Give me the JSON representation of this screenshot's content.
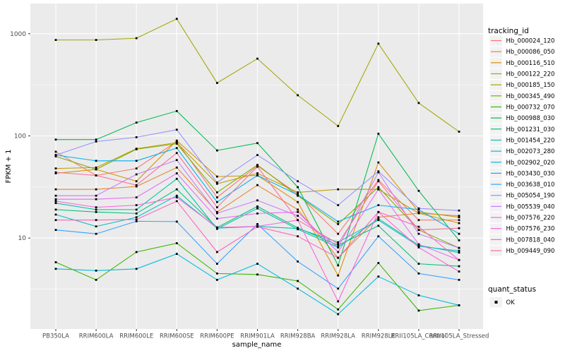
{
  "figure": {
    "background": "#FFFFFF",
    "panel_background": "#EBEBEB",
    "grid_color": "#FFFFFF",
    "axis_text_color": "#4D4D4D",
    "title_text_color": "#000000",
    "point_color": "#000000"
  },
  "chart_data": {
    "type": "line",
    "title": "",
    "xlabel": "sample_name",
    "ylabel": "FPKM + 1",
    "y_scale": "log10",
    "ylim": [
      1.3,
      1830
    ],
    "y_major_ticks": [
      10,
      100,
      1000
    ],
    "y_minor_ticks": [
      3.162,
      31.62,
      316.2
    ],
    "grid": true,
    "legend_position": "right",
    "legend_title": "tracking_id",
    "categories": [
      "PB350LA",
      "RRIM600LA",
      "RRIM600LE",
      "RRIM600SE",
      "RRIM600PE",
      "RRIM901LA",
      "RRIM928BA",
      "RRIM928LA",
      "RRIM928LE",
      "RRII105LA_Control",
      "RRII105LA_Stressed"
    ],
    "series": [
      {
        "name": "Hb_000024_120",
        "color": "#F8766D",
        "values": [
          70,
          41,
          48,
          88,
          25,
          51,
          27,
          11,
          37,
          15,
          15
        ]
      },
      {
        "name": "Hb_000086_050",
        "color": "#EA8331",
        "values": [
          30,
          30,
          32,
          49,
          18,
          33,
          19,
          6.4,
          16,
          17.5,
          16.5
        ]
      },
      {
        "name": "Hb_000116_510",
        "color": "#D89000",
        "values": [
          43,
          47,
          36,
          90,
          40,
          41,
          22.5,
          4.3,
          55,
          18,
          16
        ]
      },
      {
        "name": "Hb_000122_220",
        "color": "#C09B00",
        "values": [
          48,
          49,
          75,
          86,
          34,
          43,
          28,
          30,
          30,
          17.5,
          14
        ]
      },
      {
        "name": "Hb_000185_150",
        "color": "#A3A500",
        "values": [
          870,
          870,
          905,
          1400,
          330,
          570,
          250,
          125,
          800,
          210,
          110
        ]
      },
      {
        "name": "Hb_000345_490",
        "color": "#7CAE00",
        "values": [
          63,
          47,
          74,
          84,
          28,
          52,
          26,
          13.7,
          31.5,
          12,
          8
        ]
      },
      {
        "name": "Hb_000732_070",
        "color": "#39B600",
        "values": [
          5.8,
          3.9,
          7.3,
          8.9,
          4.5,
          4.4,
          3.8,
          2.0,
          5.7,
          1.95,
          2.2
        ]
      },
      {
        "name": "Hb_000988_030",
        "color": "#00BB4E",
        "values": [
          92,
          92,
          135,
          175,
          72,
          85,
          31.5,
          5.4,
          105,
          29,
          9.5
        ]
      },
      {
        "name": "Hb_001231_030",
        "color": "#00BF7D",
        "values": [
          19,
          18,
          17.4,
          30,
          12.7,
          20.4,
          12.6,
          8.5,
          13.2,
          5.6,
          5.3
        ]
      },
      {
        "name": "Hb_001454_220",
        "color": "#00C1A3",
        "values": [
          22,
          19,
          19,
          38,
          12.3,
          19.5,
          12.2,
          8.1,
          15.5,
          8.5,
          7.2
        ]
      },
      {
        "name": "Hb_002073_280",
        "color": "#00BFC4",
        "values": [
          17,
          13,
          16,
          26,
          12.5,
          13,
          12.4,
          9.1,
          15,
          8.3,
          7.5
        ]
      },
      {
        "name": "Hb_002902_020",
        "color": "#00BAE0",
        "values": [
          5.0,
          4.8,
          5.0,
          7.0,
          3.9,
          5.6,
          3.2,
          1.8,
          4.2,
          2.75,
          2.2
        ]
      },
      {
        "name": "Hb_003430_030",
        "color": "#00B0F6",
        "values": [
          65,
          57,
          57,
          76,
          22.5,
          41,
          26.5,
          14.5,
          21,
          19,
          11
        ]
      },
      {
        "name": "Hb_003638_010",
        "color": "#35A2FF",
        "values": [
          12,
          11,
          14.6,
          14.5,
          5.6,
          13.7,
          5.9,
          3.2,
          10.4,
          4.5,
          3.9
        ]
      },
      {
        "name": "Hb_005054_190",
        "color": "#9590FF",
        "values": [
          65,
          88,
          97,
          115,
          35,
          65,
          36,
          21,
          45,
          19.5,
          18.6
        ]
      },
      {
        "name": "Hb_005539_040",
        "color": "#C77CFF",
        "values": [
          26,
          26,
          42,
          58,
          17.5,
          23.4,
          16.5,
          8.1,
          44,
          11,
          8
        ]
      },
      {
        "name": "Hb_007576_220",
        "color": "#E76BF3",
        "values": [
          24,
          24,
          25,
          43,
          15.5,
          17.4,
          18,
          7.3,
          30,
          8.7,
          6.1
        ]
      },
      {
        "name": "Hb_007576_230",
        "color": "#FA62DB",
        "values": [
          23,
          20,
          21,
          25,
          12.7,
          13,
          15,
          2.4,
          18,
          8.1,
          4.7
        ]
      },
      {
        "name": "Hb_007818_040",
        "color": "#FF62BC",
        "values": [
          15,
          15,
          15.2,
          23,
          7.3,
          12.9,
          10.4,
          6.4,
          18,
          12.9,
          6.1
        ]
      },
      {
        "name": "Hb_009449_090",
        "color": "#FF6A98",
        "values": [
          44,
          41,
          33,
          68,
          20,
          50,
          15,
          8.8,
          36,
          12,
          12.5
        ]
      }
    ],
    "quant_status": {
      "title": "quant_status",
      "items": [
        {
          "label": "OK",
          "shape": "square",
          "color": "#000000"
        }
      ]
    }
  }
}
